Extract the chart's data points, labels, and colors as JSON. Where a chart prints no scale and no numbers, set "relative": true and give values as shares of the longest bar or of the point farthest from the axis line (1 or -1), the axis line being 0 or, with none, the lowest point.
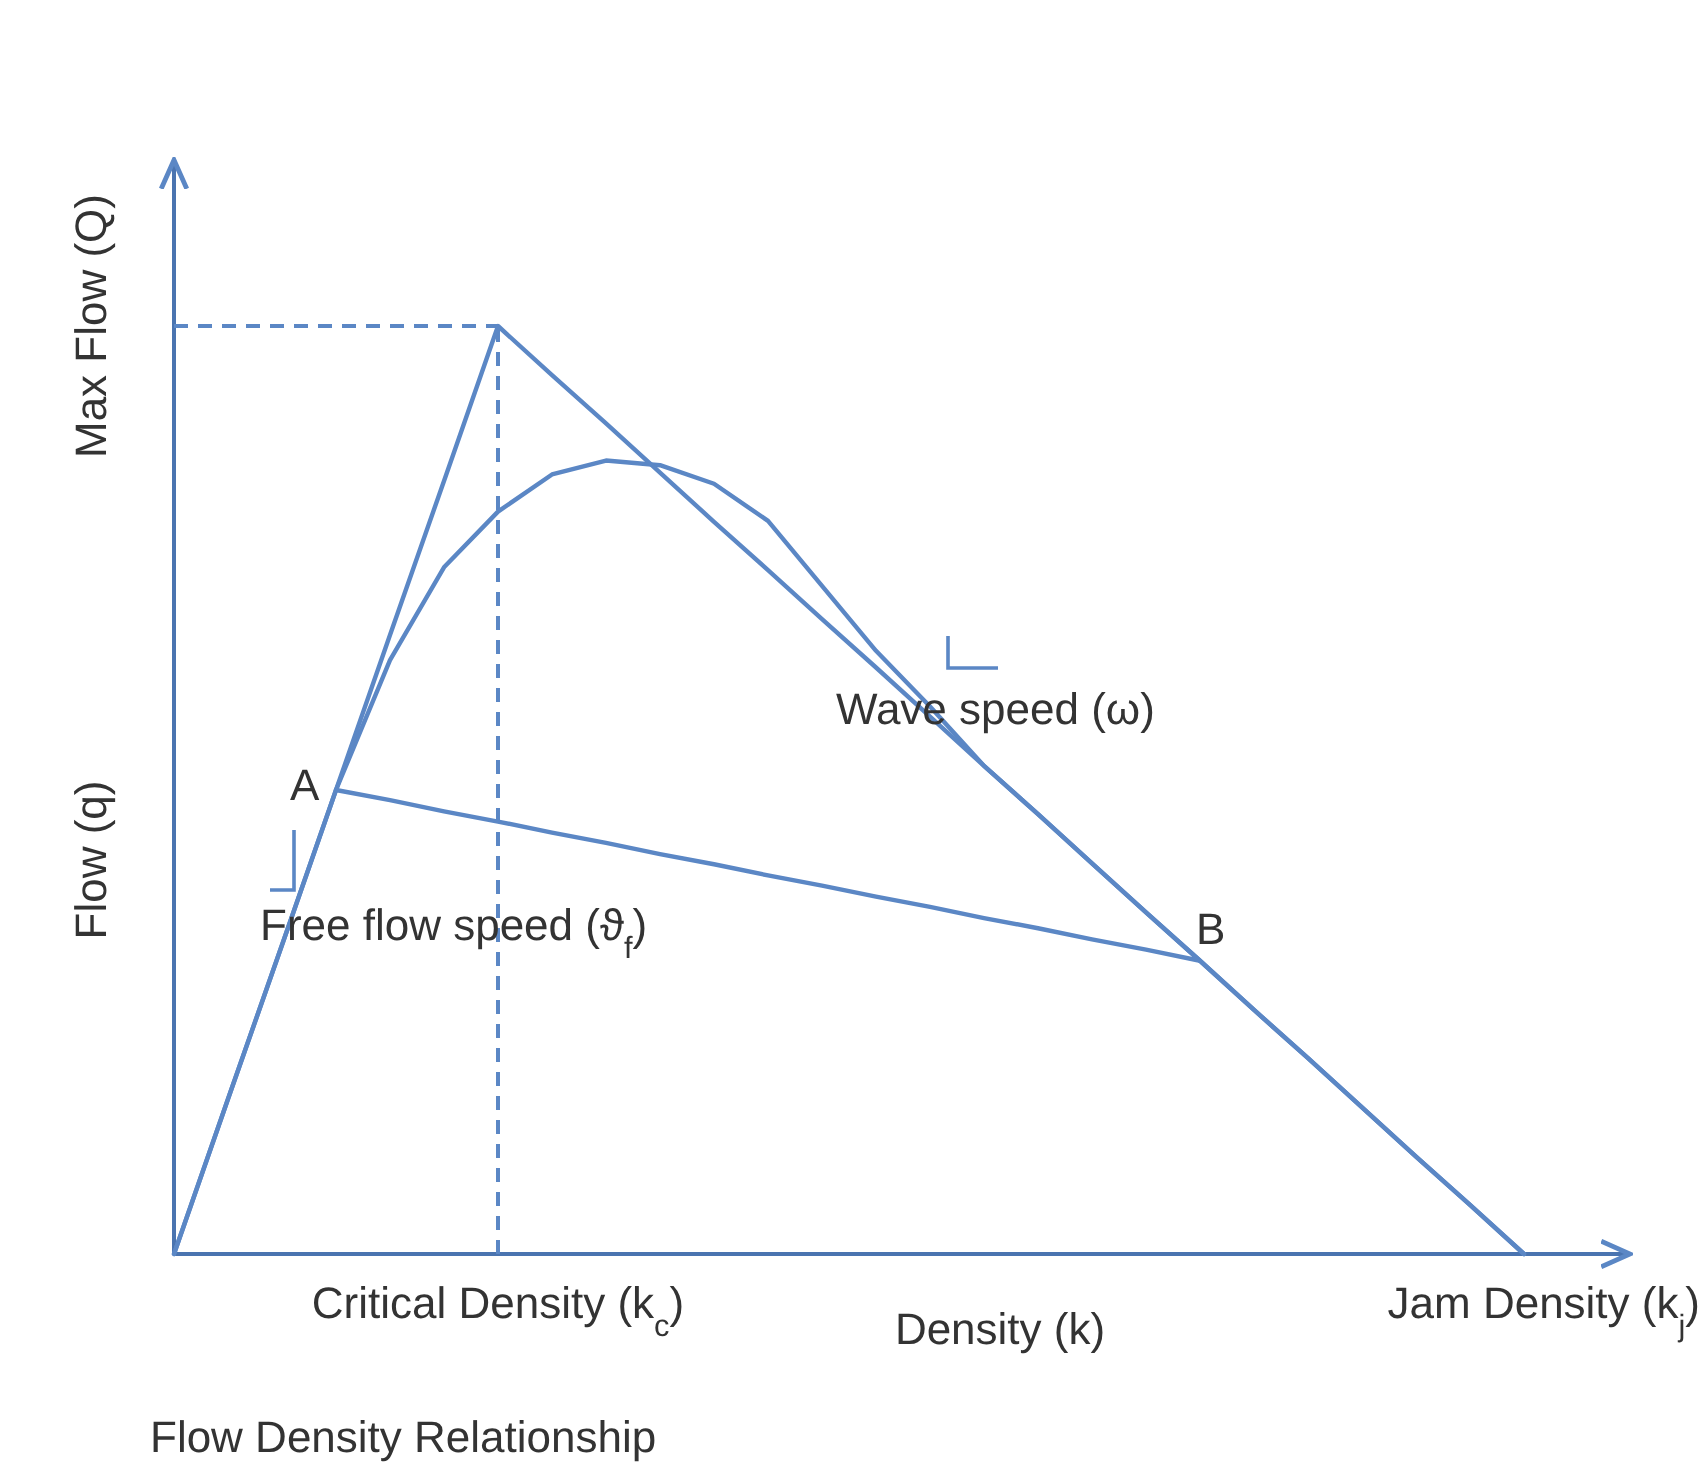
{
  "chart_data": {
    "type": "line",
    "relative": true,
    "title": "Flow Density Relationship",
    "xlabel": "Density (k)",
    "ylabel": "Flow (q)",
    "marker": "none",
    "line_style": "solid",
    "categories": [
      null,
      null,
      null,
      null,
      null,
      null,
      null,
      null,
      null,
      null,
      null,
      null,
      null,
      null,
      null,
      null,
      null,
      null,
      null,
      null,
      null,
      null,
      null,
      null,
      null,
      null
    ],
    "series": [
      {
        "color": "#5b87c5",
        "values": [
          0,
          0.167,
          0.333,
          0.5,
          0.64,
          0.74,
          0.8,
          0.84,
          0.855,
          0.85,
          0.83,
          0.79,
          0.72,
          0.65,
          0.59,
          0.526,
          0.474,
          0.421,
          0.368,
          0.316,
          0.263,
          0.211,
          0.158,
          0.105,
          0.053,
          0
        ]
      },
      {
        "color": "#5b87c5",
        "values": [
          0,
          0.167,
          0.333,
          0.5,
          0.667,
          0.833,
          1,
          0.947,
          0.895,
          0.842,
          0.789,
          0.737,
          0.684,
          0.632,
          0.579,
          0.526,
          0.474,
          0.421,
          0.368,
          0.316,
          0.263,
          0.211,
          0.158,
          0.105,
          0.053,
          0
        ]
      },
      {
        "color": "#5b87c5",
        "values": [
          null,
          null,
          null,
          0.5,
          0.489,
          0.477,
          0.466,
          0.454,
          0.443,
          0.431,
          0.42,
          0.408,
          0.397,
          0.385,
          0.374,
          0.362,
          0.351,
          0.339,
          0.328,
          0.316,
          null,
          null,
          null,
          null,
          null,
          null
        ]
      }
    ],
    "ref_lines": [
      {
        "axis": "x",
        "label": "Critical Density (k$_{c}$)",
        "color": "#5b87c5",
        "line_style": "dashed"
      },
      {
        "axis": "y",
        "value": 1,
        "label": "Max Flow (Q)",
        "color": "#5b87c5",
        "line_style": "dashed"
      }
    ],
    "annotations": [
      "A",
      "B",
      "Wave speed (ω)",
      "Free flow speed (ϑ$_{f}$)",
      "Jam Density (k$_{j}$)"
    ]
  }
}
